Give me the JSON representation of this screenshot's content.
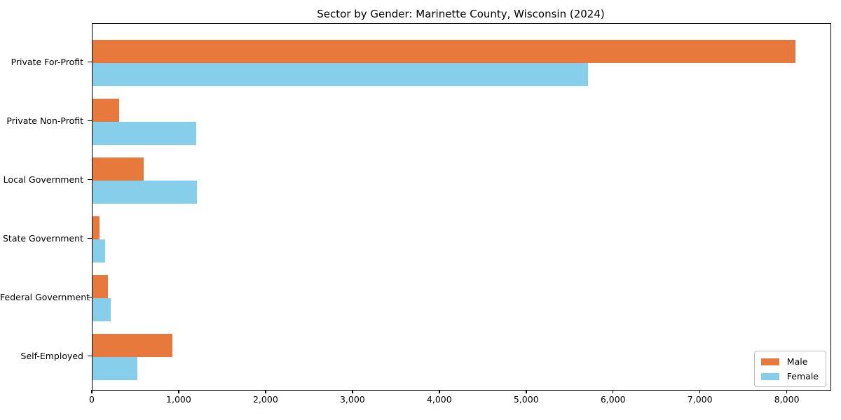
{
  "chart_data": {
    "type": "bar",
    "orientation": "horizontal",
    "title": "Sector by Gender: Marinette County, Wisconsin (2024)",
    "categories": [
      "Private For-Profit",
      "Private Non-Profit",
      "Local Government",
      "State Government",
      "Federal Government",
      "Self-Employed"
    ],
    "series": [
      {
        "name": "Male",
        "color": "#E8793C",
        "values": [
          8090,
          310,
          590,
          80,
          180,
          920
        ]
      },
      {
        "name": "Female",
        "color": "#87CEEB",
        "values": [
          5700,
          1190,
          1200,
          145,
          210,
          520
        ]
      }
    ],
    "xlabel": "",
    "ylabel": "",
    "xlim": [
      0,
      8495
    ],
    "xticks": [
      0,
      1000,
      2000,
      3000,
      4000,
      5000,
      6000,
      7000,
      8000
    ],
    "xtick_labels": [
      "0",
      "1,000",
      "2,000",
      "3,000",
      "4,000",
      "5,000",
      "6,000",
      "7,000",
      "8,000"
    ],
    "grid": false,
    "legend_position": "lower right",
    "frame_color": "#000000",
    "background_color": "#ffffff"
  }
}
